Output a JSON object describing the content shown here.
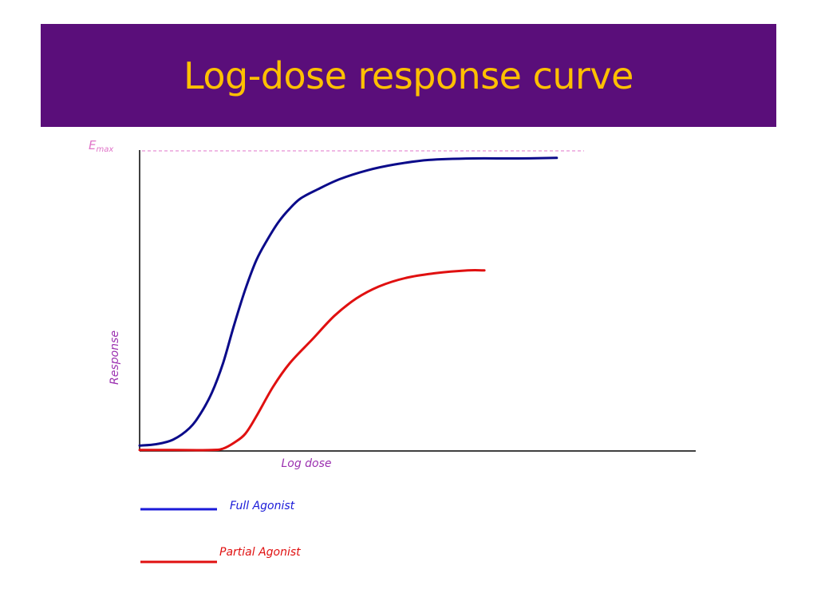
{
  "slide": {
    "title": "Log-dose response curve",
    "title_bar_color": "#5a0e7a",
    "title_color": "#ffc000"
  },
  "chart_data": {
    "type": "line",
    "xlabel": "Log dose",
    "ylabel": "Response",
    "emax_label": {
      "main": "E",
      "sub": "max"
    },
    "emax_line_color": "#e074c8",
    "axis_label_color": "#9b30b0",
    "xlim": [
      0,
      100
    ],
    "ylim": [
      0,
      100
    ],
    "grid": false,
    "emax_level": 100,
    "series": [
      {
        "name": "Full Agonist",
        "color": "#0b0b8a",
        "legend_color": "#1a1ad8",
        "points": [
          [
            0,
            1
          ],
          [
            3,
            1.5
          ],
          [
            6,
            3
          ],
          [
            9,
            7
          ],
          [
            11,
            12
          ],
          [
            13,
            19
          ],
          [
            15,
            29
          ],
          [
            17,
            42
          ],
          [
            19,
            54
          ],
          [
            21,
            64
          ],
          [
            23,
            71
          ],
          [
            25,
            77
          ],
          [
            27,
            81.5
          ],
          [
            29,
            85
          ],
          [
            32,
            88
          ],
          [
            36,
            91.5
          ],
          [
            41,
            94.5
          ],
          [
            46,
            96.5
          ],
          [
            52,
            98
          ],
          [
            60,
            98.5
          ],
          [
            68,
            98.5
          ],
          [
            75,
            98.7
          ]
        ]
      },
      {
        "name": "Partial Agonist",
        "color": "#e01010",
        "legend_color": "#e01010",
        "points": [
          [
            0,
            -0.5
          ],
          [
            6,
            -0.5
          ],
          [
            13,
            -0.5
          ],
          [
            15,
            0
          ],
          [
            17,
            2
          ],
          [
            19,
            5
          ],
          [
            21,
            11
          ],
          [
            24,
            21
          ],
          [
            27,
            29
          ],
          [
            31,
            37
          ],
          [
            35,
            45
          ],
          [
            39,
            51
          ],
          [
            43,
            55
          ],
          [
            48,
            58
          ],
          [
            53,
            59.5
          ],
          [
            59,
            60.5
          ],
          [
            62,
            60.5
          ]
        ]
      }
    ]
  }
}
